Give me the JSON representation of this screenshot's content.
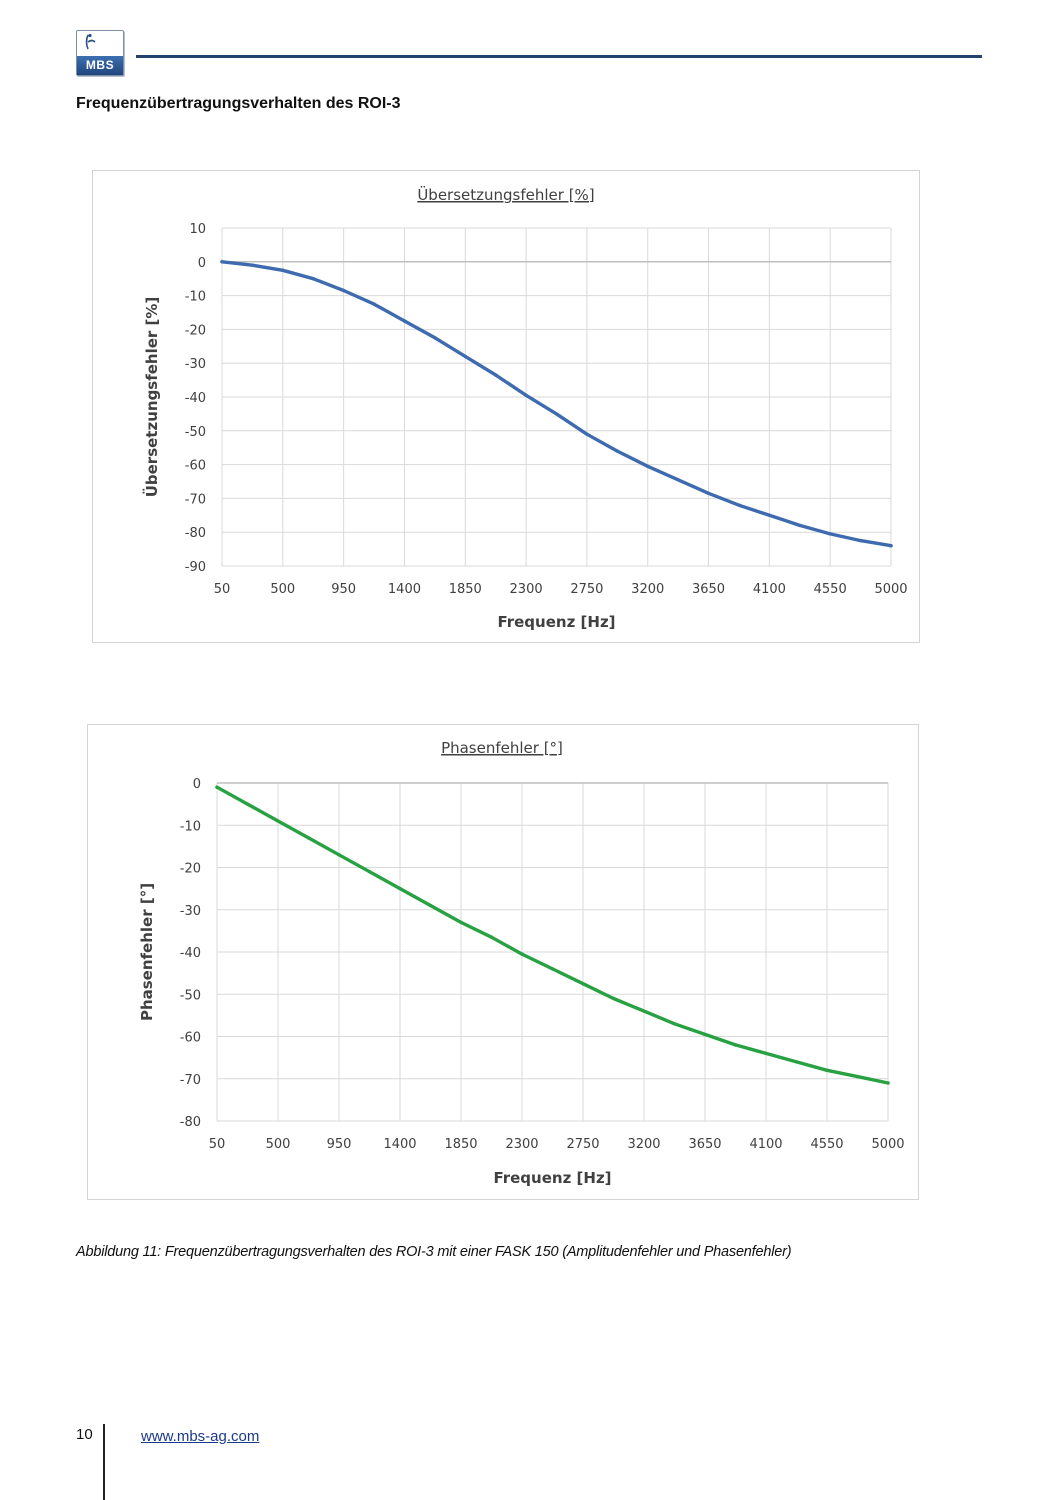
{
  "header": {
    "logo_text": "MBS",
    "accent_color": "#24416b"
  },
  "page": {
    "heading": "Frequenzübertragungsverhalten des ROI-3",
    "caption": "Abbildung 11: Frequenzübertragungsverhalten des ROI-3 mit einer FASK 150 (Amplitudenfehler und Phasenfehler)",
    "page_number": "10",
    "website": "www.mbs-ag.com"
  },
  "chart_data": [
    {
      "type": "line",
      "title": "Übersetzungsfehler [%]",
      "xlabel": "Frequenz [Hz]",
      "ylabel": "Übersetzungsfehler [%]",
      "xlim": [
        50,
        5000
      ],
      "ylim": [
        -90,
        10
      ],
      "x_ticks": [
        50,
        500,
        950,
        1400,
        1850,
        2300,
        2750,
        3200,
        3650,
        4100,
        4550,
        5000
      ],
      "y_ticks": [
        10,
        0,
        -10,
        -20,
        -30,
        -40,
        -50,
        -60,
        -70,
        -80,
        -90
      ],
      "grid": true,
      "color": "#3e6bb0",
      "x": [
        50,
        275,
        500,
        725,
        950,
        1175,
        1400,
        1625,
        1850,
        2075,
        2300,
        2525,
        2750,
        2975,
        3200,
        3425,
        3650,
        3875,
        4100,
        4325,
        4550,
        4775,
        5000
      ],
      "y": [
        0,
        -1,
        -2.5,
        -5,
        -8.5,
        -12.5,
        -17.5,
        -22.5,
        -28,
        -33.5,
        -39.5,
        -45,
        -51,
        -56,
        -60.5,
        -64.5,
        -68.5,
        -72,
        -75,
        -78,
        -80.5,
        -82.5,
        -84
      ]
    },
    {
      "type": "line",
      "title": "Phasenfehler [°]",
      "xlabel": "Frequenz [Hz]",
      "ylabel": "Phasenfehler [°]",
      "xlim": [
        50,
        5000
      ],
      "ylim": [
        -80,
        0
      ],
      "x_ticks": [
        50,
        500,
        950,
        1400,
        1850,
        2300,
        2750,
        3200,
        3650,
        4100,
        4550,
        5000
      ],
      "y_ticks": [
        0,
        -10,
        -20,
        -30,
        -40,
        -50,
        -60,
        -70,
        -80
      ],
      "grid": true,
      "color": "#27a142",
      "x": [
        50,
        275,
        500,
        725,
        950,
        1175,
        1400,
        1625,
        1850,
        2075,
        2300,
        2525,
        2750,
        2975,
        3200,
        3425,
        3650,
        3875,
        4100,
        4325,
        4550,
        4775,
        5000
      ],
      "y": [
        -1,
        -5,
        -9,
        -13,
        -17,
        -21,
        -25,
        -29,
        -33,
        -36.5,
        -40.5,
        -44,
        -47.5,
        -51,
        -54,
        -57,
        -59.5,
        -62,
        -64,
        -66,
        -68,
        -69.5,
        -71
      ]
    }
  ]
}
